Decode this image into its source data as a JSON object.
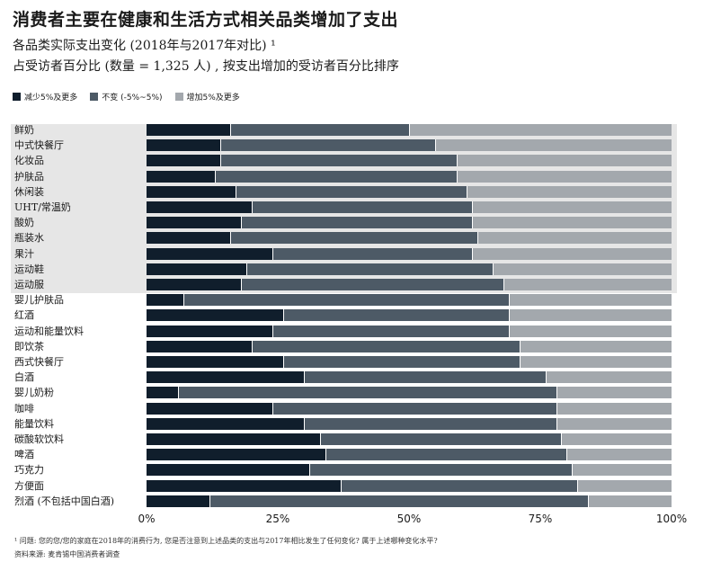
{
  "header": {
    "title": "消费者主要在健康和生活方式相关品类增加了支出",
    "subtitle1": "各品类实际支出变化 (2018年与2017年对比) ¹",
    "subtitle2": "占受访者百分比 (数量 = 1,325 人) , 按支出增加的受访者百分比排序"
  },
  "colors": {
    "decrease": "#101e2c",
    "same": "#4d5a66",
    "increase": "#a3a8ad",
    "highlight": "#e6e6e6"
  },
  "legend": [
    {
      "label": "减少5%及更多",
      "color": "#101e2c"
    },
    {
      "label": "不变 (-5%~5%)",
      "color": "#4d5a66"
    },
    {
      "label": "增加5%及更多",
      "color": "#a3a8ad"
    }
  ],
  "chart_data": {
    "type": "bar",
    "orientation": "horizontal",
    "stacked": true,
    "percent": true,
    "title": "消费者主要在健康和生活方式相关品类增加了支出",
    "categories": [
      "鲜奶",
      "中式快餐厅",
      "化妆品",
      "护肤品",
      "休闲装",
      "UHT/常温奶",
      "酸奶",
      "瓶装水",
      "果汁",
      "运动鞋",
      "运动服",
      "婴儿护肤品",
      "红酒",
      "运动和能量饮料",
      "即饮茶",
      "西式快餐厅",
      "白酒",
      "婴儿奶粉",
      "咖啡",
      "能量饮料",
      "碳酸软饮料",
      "啤酒",
      "巧克力",
      "方便面",
      "烈酒 (不包括中国白酒)"
    ],
    "highlighted_count": 11,
    "series": [
      {
        "name": "减少5%及更多",
        "values": [
          16,
          14,
          14,
          13,
          17,
          20,
          18,
          16,
          24,
          19,
          18,
          7,
          26,
          24,
          20,
          26,
          30,
          6,
          24,
          30,
          33,
          34,
          31,
          37,
          12
        ]
      },
      {
        "name": "不变 (-5%~5%)",
        "values": [
          34,
          41,
          45,
          46,
          44,
          42,
          44,
          47,
          38,
          47,
          50,
          62,
          43,
          45,
          51,
          45,
          46,
          72,
          54,
          48,
          46,
          46,
          50,
          45,
          72
        ]
      },
      {
        "name": "增加5%及更多",
        "values": [
          50,
          45,
          41,
          41,
          39,
          38,
          38,
          37,
          38,
          34,
          32,
          31,
          31,
          31,
          29,
          29,
          24,
          22,
          22,
          22,
          21,
          20,
          19,
          18,
          16
        ]
      }
    ],
    "xlim": [
      0,
      100
    ],
    "xticks": [
      "0%",
      "25%",
      "50%",
      "75%",
      "100%"
    ],
    "xlabel": "",
    "ylabel": ""
  },
  "footnotes": {
    "note": "¹ 问题: 您的您/您的家庭在2018年的消费行为, 您是否注意到上述品类的支出与2017年相比发生了任何变化? 属于上述哪种变化水平?",
    "source": "资料来源: 麦肯锡中国消费者调查"
  }
}
